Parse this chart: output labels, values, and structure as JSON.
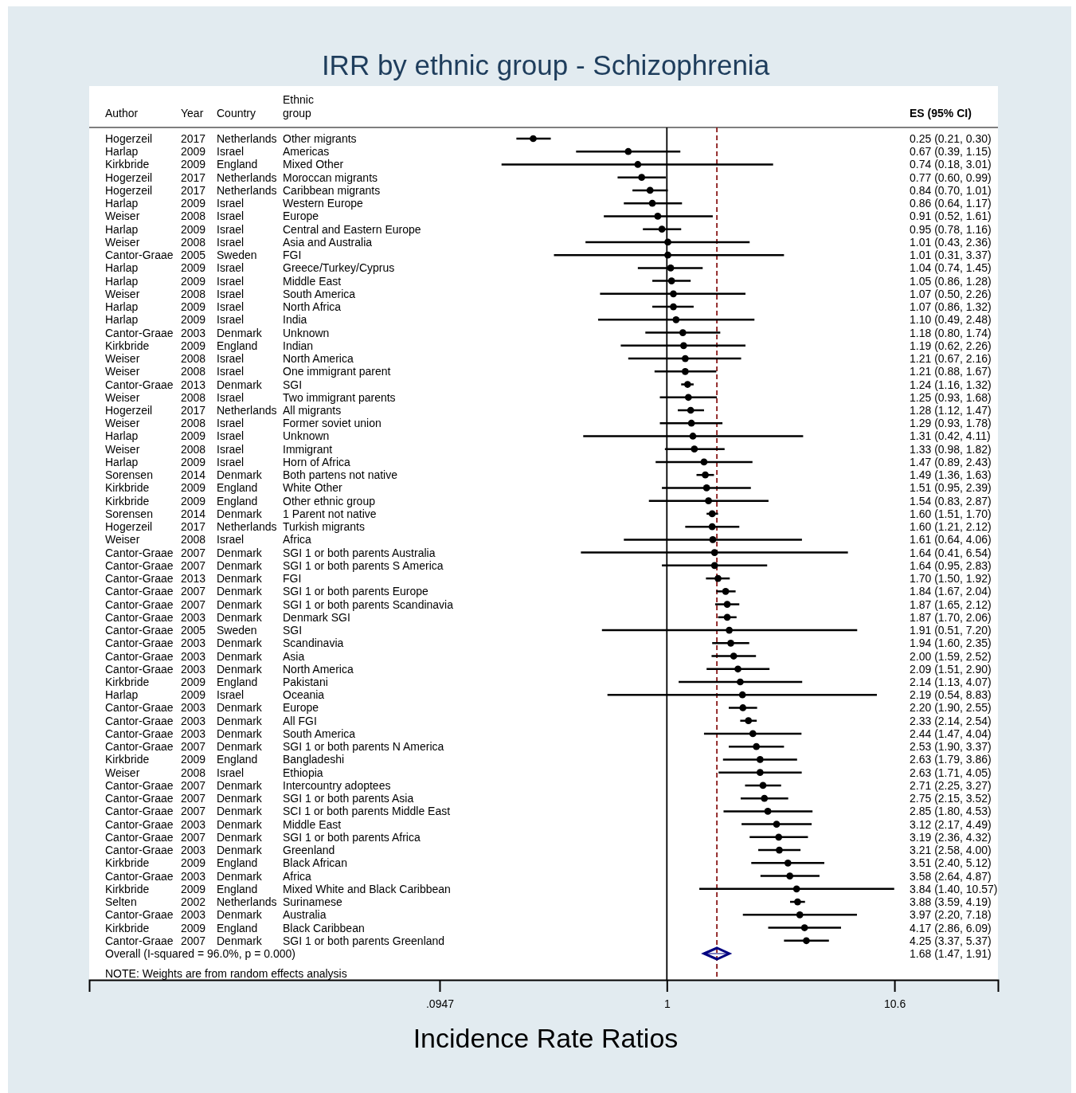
{
  "chart_data": {
    "type": "scatter",
    "orientation": "horizontal",
    "title": "IRR by ethnic group - Schizophrenia",
    "xlabel": "Incidence Rate Ratios",
    "categories": [
      "Other migrants",
      "Americas",
      "Mixed Other",
      "Moroccan migrants",
      "Caribbean migrants",
      "Western Europe",
      "Europe",
      "Central and Eastern Europe",
      "Asia and Australia",
      "FGI",
      "Greece/Turkey/Cyprus",
      "Middle East",
      "South America",
      "North Africa",
      "India",
      "Unknown",
      "Indian",
      "North America",
      "One immigrant parent",
      "SGI",
      "Two immigrant parents",
      "All migrants",
      "Former soviet union",
      "Unknown",
      "Immigrant",
      "Horn of Africa",
      "Both partens not native",
      "White Other",
      "Other ethnic group",
      "1 Parent not native",
      "Turkish migrants",
      "Africa",
      "SGI 1 or both parents Australia",
      "SGI 1 or both parents S America",
      "FGI",
      "SGI 1 or both parents Europe",
      "SGI 1 or both parents Scandinavia",
      "Denmark SGI",
      "SGI",
      "Scandinavia",
      "Asia",
      "North America",
      "Pakistani",
      "Oceania",
      "Europe",
      "All FGI",
      "South America",
      "SGI 1 or both parents N America",
      "Bangladeshi",
      "Ethiopia",
      "Intercountry adoptees",
      "SGI 1 or both parents Asia",
      "SCI 1 or both parents Middle East",
      "Middle East",
      "SGI 1 or both parents Africa",
      "Greenland",
      "Black African",
      "Africa",
      "Mixed White and Black Caribbean",
      "Surinamese",
      "Australia",
      "Black Caribbean",
      "SGI 1 or both parents Greenland",
      "Overall  (I-squared = 96.0%, p = 0.000)"
    ],
    "y2_categories": [
      "0.25 (0.21, 0.30)",
      "0.67 (0.39, 1.15)",
      "0.74 (0.18, 3.01)",
      "0.77 (0.60, 0.99)",
      "0.84 (0.70, 1.01)",
      "0.86 (0.64, 1.17)",
      "0.91 (0.52, 1.61)",
      "0.95 (0.78, 1.16)",
      "1.01 (0.43, 2.36)",
      "1.01 (0.31, 3.37)",
      "1.04 (0.74, 1.45)",
      "1.05 (0.86, 1.28)",
      "1.07 (0.50, 2.26)",
      "1.07 (0.86, 1.32)",
      "1.10 (0.49, 2.48)",
      "1.18 (0.80, 1.74)",
      "1.19 (0.62, 2.26)",
      "1.21 (0.67, 2.16)",
      "1.21 (0.88, 1.67)",
      "1.24 (1.16, 1.32)",
      "1.25 (0.93, 1.68)",
      "1.28 (1.12, 1.47)",
      "1.29 (0.93, 1.78)",
      "1.31 (0.42, 4.11)",
      "1.33 (0.98, 1.82)",
      "1.47 (0.89, 2.43)",
      "1.49 (1.36, 1.63)",
      "1.51 (0.95, 2.39)",
      "1.54 (0.83, 2.87)",
      "1.60 (1.51, 1.70)",
      "1.60 (1.21, 2.12)",
      "1.61 (0.64, 4.06)",
      "1.64 (0.41, 6.54)",
      "1.64 (0.95, 2.83)",
      "1.70 (1.50, 1.92)",
      "1.84 (1.67, 2.04)",
      "1.87 (1.65, 2.12)",
      "1.87 (1.70, 2.06)",
      "1.91 (0.51, 7.20)",
      "1.94 (1.60, 2.35)",
      "2.00 (1.59, 2.52)",
      "2.09 (1.51, 2.90)",
      "2.14 (1.13, 4.07)",
      "2.19 (0.54, 8.83)",
      "2.20 (1.90, 2.55)",
      "2.33 (2.14, 2.54)",
      "2.44 (1.47, 4.04)",
      "2.53 (1.90, 3.37)",
      "2.63 (1.79, 3.86)",
      "2.63 (1.71, 4.05)",
      "2.71 (2.25, 3.27)",
      "2.75 (2.15, 3.52)",
      "2.85 (1.80, 4.53)",
      "3.12 (2.17, 4.49)",
      "3.19 (2.36, 4.32)",
      "3.21 (2.58, 4.00)",
      "3.51 (2.40, 5.12)",
      "3.58 (2.64, 4.87)",
      "3.84 (1.40, 10.57)",
      "3.88 (3.59, 4.19)",
      "3.97 (2.20, 7.18)",
      "4.17 (2.86, 6.09)",
      "4.25 (3.37, 5.37)",
      "1.68 (1.47, 1.91)"
    ],
    "series": [
      {
        "color": "#000000",
        "marker": "circle",
        "values": [
          0.25,
          0.67,
          0.74,
          0.77,
          0.84,
          0.86,
          0.91,
          0.95,
          1.01,
          1.01,
          1.04,
          1.05,
          1.07,
          1.07,
          1.1,
          1.18,
          1.19,
          1.21,
          1.21,
          1.24,
          1.25,
          1.28,
          1.29,
          1.31,
          1.33,
          1.47,
          1.49,
          1.51,
          1.54,
          1.6,
          1.6,
          1.61,
          1.64,
          1.64,
          1.7,
          1.84,
          1.87,
          1.87,
          1.91,
          1.94,
          2.0,
          2.09,
          2.14,
          2.19,
          2.2,
          2.33,
          2.44,
          2.53,
          2.63,
          2.63,
          2.71,
          2.75,
          2.85,
          3.12,
          3.19,
          3.21,
          3.51,
          3.58,
          3.84,
          3.88,
          3.97,
          4.17,
          4.25,
          null
        ],
        "errors": [
          [
            0.21,
            0.3
          ],
          [
            0.39,
            1.15
          ],
          [
            0.18,
            3.01
          ],
          [
            0.6,
            0.99
          ],
          [
            0.7,
            1.01
          ],
          [
            0.64,
            1.17
          ],
          [
            0.52,
            1.61
          ],
          [
            0.78,
            1.16
          ],
          [
            0.43,
            2.36
          ],
          [
            0.31,
            3.37
          ],
          [
            0.74,
            1.45
          ],
          [
            0.86,
            1.28
          ],
          [
            0.5,
            2.26
          ],
          [
            0.86,
            1.32
          ],
          [
            0.49,
            2.48
          ],
          [
            0.8,
            1.74
          ],
          [
            0.62,
            2.26
          ],
          [
            0.67,
            2.16
          ],
          [
            0.88,
            1.67
          ],
          [
            1.16,
            1.32
          ],
          [
            0.93,
            1.68
          ],
          [
            1.12,
            1.47
          ],
          [
            0.93,
            1.78
          ],
          [
            0.42,
            4.11
          ],
          [
            0.98,
            1.82
          ],
          [
            0.89,
            2.43
          ],
          [
            1.36,
            1.63
          ],
          [
            0.95,
            2.39
          ],
          [
            0.83,
            2.87
          ],
          [
            1.51,
            1.7
          ],
          [
            1.21,
            2.12
          ],
          [
            0.64,
            4.06
          ],
          [
            0.41,
            6.54
          ],
          [
            0.95,
            2.83
          ],
          [
            1.5,
            1.92
          ],
          [
            1.67,
            2.04
          ],
          [
            1.65,
            2.12
          ],
          [
            1.7,
            2.06
          ],
          [
            0.51,
            7.2
          ],
          [
            1.6,
            2.35
          ],
          [
            1.59,
            2.52
          ],
          [
            1.51,
            2.9
          ],
          [
            1.13,
            4.07
          ],
          [
            0.54,
            8.83
          ],
          [
            1.9,
            2.55
          ],
          [
            2.14,
            2.54
          ],
          [
            1.47,
            4.04
          ],
          [
            1.9,
            3.37
          ],
          [
            1.79,
            3.86
          ],
          [
            1.71,
            4.05
          ],
          [
            2.25,
            3.27
          ],
          [
            2.15,
            3.52
          ],
          [
            1.8,
            4.53
          ],
          [
            2.17,
            4.49
          ],
          [
            2.36,
            4.32
          ],
          [
            2.58,
            4.0
          ],
          [
            2.4,
            5.12
          ],
          [
            2.64,
            4.87
          ],
          [
            1.4,
            10.57
          ],
          [
            3.59,
            4.19
          ],
          [
            2.2,
            7.18
          ],
          [
            2.86,
            6.09
          ],
          [
            3.37,
            5.37
          ],
          null
        ]
      },
      {
        "color": "#000080",
        "marker": "diamond",
        "values": [
          null,
          null,
          null,
          null,
          null,
          null,
          null,
          null,
          null,
          null,
          null,
          null,
          null,
          null,
          null,
          null,
          null,
          null,
          null,
          null,
          null,
          null,
          null,
          null,
          null,
          null,
          null,
          null,
          null,
          null,
          null,
          null,
          null,
          null,
          null,
          null,
          null,
          null,
          null,
          null,
          null,
          null,
          null,
          null,
          null,
          null,
          null,
          null,
          null,
          null,
          null,
          null,
          null,
          null,
          null,
          null,
          null,
          null,
          null,
          null,
          null,
          null,
          null,
          1.68
        ],
        "errors": [
          null,
          null,
          null,
          null,
          null,
          null,
          null,
          null,
          null,
          null,
          null,
          null,
          null,
          null,
          null,
          null,
          null,
          null,
          null,
          null,
          null,
          null,
          null,
          null,
          null,
          null,
          null,
          null,
          null,
          null,
          null,
          null,
          null,
          null,
          null,
          null,
          null,
          null,
          null,
          null,
          null,
          null,
          null,
          null,
          null,
          null,
          null,
          null,
          null,
          null,
          null,
          null,
          null,
          null,
          null,
          null,
          null,
          null,
          null,
          null,
          null,
          null,
          null,
          [
            1.47,
            1.91
          ]
        ]
      }
    ],
    "log": "x",
    "xlim": [
      0.0025,
      31
    ],
    "xticks": [
      {
        "value": 0.0947,
        "label": ".0947"
      },
      1,
      10.6
    ],
    "ref_lines": [
      {
        "axis": "x",
        "value": 1,
        "color": "#000000",
        "line_style": "solid"
      },
      {
        "axis": "x",
        "value": 1.68,
        "color": "#8b1a1a",
        "line_style": "dashed"
      }
    ],
    "grid": false,
    "annotations": [
      "Author",
      "Year",
      "Country",
      "Ethnic group",
      "ES (95% CI)",
      "Hogerzeil",
      "2017",
      "Netherlands",
      "Harlap",
      "2009",
      "Israel",
      "Kirkbride",
      "2009",
      "England",
      "Hogerzeil",
      "2017",
      "Netherlands",
      "Hogerzeil",
      "2017",
      "Netherlands",
      "Harlap",
      "2009",
      "Israel",
      "Weiser",
      "2008",
      "Israel",
      "Harlap",
      "2009",
      "Israel",
      "Weiser",
      "2008",
      "Israel",
      "Cantor-Graae",
      "2005",
      "Sweden",
      "Harlap",
      "2009",
      "Israel",
      "Harlap",
      "2009",
      "Israel",
      "Weiser",
      "2008",
      "Israel",
      "Harlap",
      "2009",
      "Israel",
      "Harlap",
      "2009",
      "Israel",
      "Cantor-Graae",
      "2003",
      "Denmark",
      "Kirkbride",
      "2009",
      "England",
      "Weiser",
      "2008",
      "Israel",
      "Weiser",
      "2008",
      "Israel",
      "Cantor-Graae",
      "2013",
      "Denmark",
      "Weiser",
      "2008",
      "Israel",
      "Hogerzeil",
      "2017",
      "Netherlands",
      "Weiser",
      "2008",
      "Israel",
      "Harlap",
      "2009",
      "Israel",
      "Weiser",
      "2008",
      "Israel",
      "Harlap",
      "2009",
      "Israel",
      "Sorensen",
      "2014",
      "Denmark",
      "Kirkbride",
      "2009",
      "England",
      "Kirkbride",
      "2009",
      "England",
      "Sorensen",
      "2014",
      "Denmark",
      "Hogerzeil",
      "2017",
      "Netherlands",
      "Weiser",
      "2008",
      "Israel",
      "Cantor-Graae",
      "2007",
      "Denmark",
      "Cantor-Graae",
      "2007",
      "Denmark",
      "Cantor-Graae",
      "2013",
      "Denmark",
      "Cantor-Graae",
      "2007",
      "Denmark",
      "Cantor-Graae",
      "2007",
      "Denmark",
      "Cantor-Graae",
      "2003",
      "Denmark",
      "Cantor-Graae",
      "2005",
      "Sweden",
      "Cantor-Graae",
      "2003",
      "Denmark",
      "Cantor-Graae",
      "2003",
      "Denmark",
      "Cantor-Graae",
      "2003",
      "Denmark",
      "Kirkbride",
      "2009",
      "England",
      "Harlap",
      "2009",
      "Israel",
      "Cantor-Graae",
      "2003",
      "Denmark",
      "Cantor-Graae",
      "2003",
      "Denmark",
      "Cantor-Graae",
      "2003",
      "Denmark",
      "Cantor-Graae",
      "2007",
      "Denmark",
      "Kirkbride",
      "2009",
      "England",
      "Weiser",
      "2008",
      "Israel",
      "Cantor-Graae",
      "2007",
      "Denmark",
      "Cantor-Graae",
      "2007",
      "Denmark",
      "Cantor-Graae",
      "2007",
      "Denmark",
      "Cantor-Graae",
      "2003",
      "Denmark",
      "Cantor-Graae",
      "2007",
      "Denmark",
      "Cantor-Graae",
      "2003",
      "Denmark",
      "Kirkbride",
      "2009",
      "England",
      "Cantor-Graae",
      "2003",
      "Denmark",
      "Kirkbride",
      "2009",
      "England",
      "Selten",
      "2002",
      "Netherlands",
      "Cantor-Graae",
      "2003",
      "Denmark",
      "Kirkbride",
      "2009",
      "England",
      "Cantor-Graae",
      "2007",
      "Denmark",
      "NOTE: Weights are from random effects analysis"
    ]
  }
}
